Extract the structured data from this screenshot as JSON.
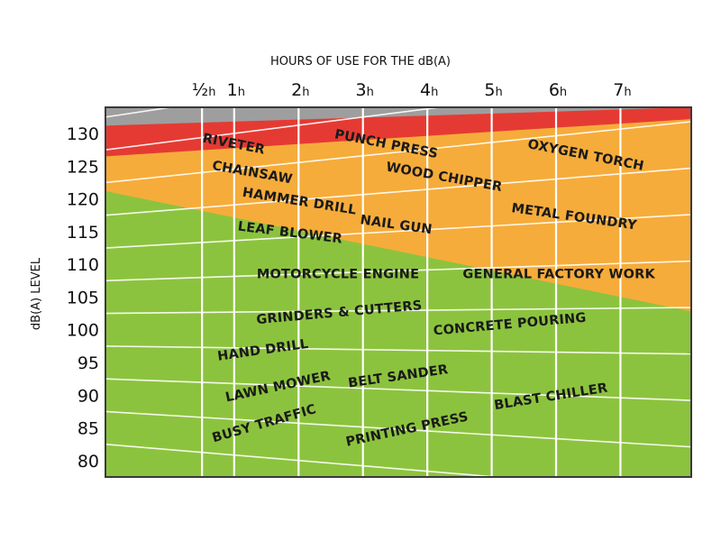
{
  "chart_data": {
    "type": "area",
    "title": "HOURS OF USE FOR THE dB(A)",
    "xlabel": "HOURS OF USE FOR THE dB(A)",
    "ylabel": "dB(A) LEVEL",
    "x_ticks": [
      {
        "value": 0.5,
        "main": "½",
        "sub": "h"
      },
      {
        "value": 1,
        "main": "1",
        "sub": "h"
      },
      {
        "value": 2,
        "main": "2",
        "sub": "h"
      },
      {
        "value": 3,
        "main": "3",
        "sub": "h"
      },
      {
        "value": 4,
        "main": "4",
        "sub": "h"
      },
      {
        "value": 5,
        "main": "5",
        "sub": "h"
      },
      {
        "value": 6,
        "main": "6",
        "sub": "h"
      },
      {
        "value": 7,
        "main": "7",
        "sub": "h"
      }
    ],
    "y_ticks": [
      130,
      125,
      120,
      115,
      110,
      105,
      100,
      95,
      90,
      85,
      80
    ],
    "ylim": [
      77.5,
      134
    ],
    "xlim": [
      -1.0,
      8.1
    ],
    "grid": true,
    "zones": [
      {
        "name": "grey",
        "color": "#9e9e9e",
        "boundary": [
          [
            -1.0,
            134
          ],
          [
            8.1,
            134
          ]
        ]
      },
      {
        "name": "red",
        "color": "#e53a33",
        "boundary": [
          [
            -1.0,
            131.2
          ],
          [
            8.1,
            134
          ]
        ]
      },
      {
        "name": "orange",
        "color": "#f6ac3a",
        "boundary": [
          [
            -1.0,
            126.5
          ],
          [
            8.1,
            132.2
          ]
        ]
      },
      {
        "name": "green",
        "color": "#8cc33e",
        "boundary": [
          [
            -1.0,
            121.2
          ],
          [
            8.1,
            102.8
          ]
        ]
      }
    ],
    "sources": [
      {
        "label": "RIVETER",
        "x": 0.5,
        "y": 128.7,
        "angle": -11
      },
      {
        "label": "PUNCH PRESS",
        "x": 2.55,
        "y": 129.3,
        "angle": -11
      },
      {
        "label": "OXYGEN TORCH",
        "x": 5.55,
        "y": 127.8,
        "angle": -11
      },
      {
        "label": "CHAINSAW",
        "x": 0.65,
        "y": 124.5,
        "angle": -10
      },
      {
        "label": "WOOD CHIPPER",
        "x": 3.35,
        "y": 124.3,
        "angle": -10
      },
      {
        "label": "HAMMER DRILL",
        "x": 1.12,
        "y": 120.4,
        "angle": -9
      },
      {
        "label": "NAIL GUN",
        "x": 2.95,
        "y": 116.2,
        "angle": -8
      },
      {
        "label": "METAL FOUNDRY",
        "x": 5.3,
        "y": 118.0,
        "angle": -8
      },
      {
        "label": "LEAF BLOWER",
        "x": 1.05,
        "y": 115.2,
        "angle": -7
      },
      {
        "label": "MOTORCYCLE ENGINE",
        "x": 1.35,
        "y": 107.9,
        "angle": 0
      },
      {
        "label": "GENERAL FACTORY WORK",
        "x": 4.55,
        "y": 107.9,
        "angle": 0
      },
      {
        "label": "GRINDERS & CUTTERS",
        "x": 1.35,
        "y": 100.9,
        "angle": 5
      },
      {
        "label": "CONCRETE POURING",
        "x": 4.1,
        "y": 99.2,
        "angle": 5
      },
      {
        "label": "HAND DRILL",
        "x": 0.75,
        "y": 95.3,
        "angle": 8
      },
      {
        "label": "BELT SANDER",
        "x": 2.78,
        "y": 91.2,
        "angle": 8
      },
      {
        "label": "BLAST CHILLER",
        "x": 5.05,
        "y": 87.8,
        "angle": 9
      },
      {
        "label": "LAWN MOWER",
        "x": 0.88,
        "y": 89.0,
        "angle": 12
      },
      {
        "label": "PRINTING PRESS",
        "x": 2.75,
        "y": 82.2,
        "angle": 12
      },
      {
        "label": "BUSY TRAFFIC",
        "x": 0.68,
        "y": 82.8,
        "angle": 16
      }
    ]
  }
}
